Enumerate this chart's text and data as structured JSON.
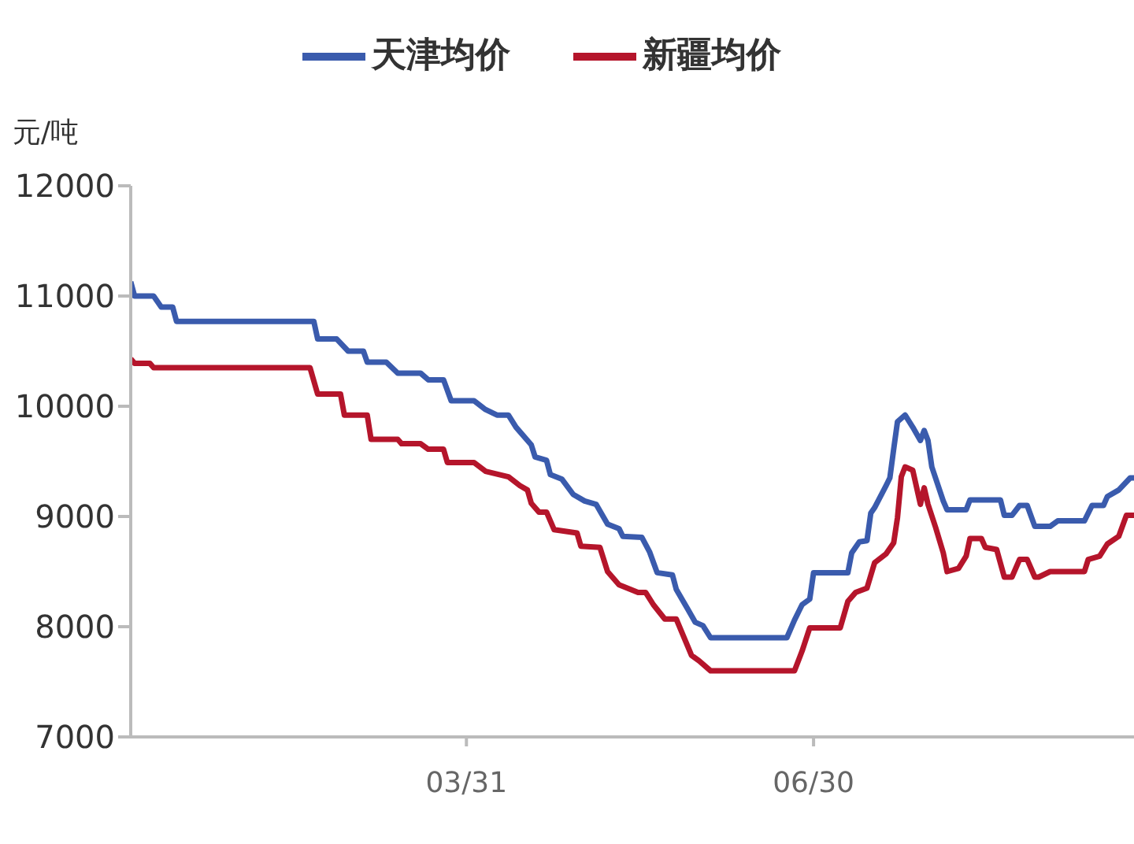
{
  "chart_data": {
    "type": "line",
    "ylabel": "元/吨",
    "legend": "top",
    "grid": false,
    "marker": "none",
    "line_style": "solid",
    "ylim": [
      7000,
      12000
    ],
    "yticks": [
      7000,
      8000,
      9000,
      10000,
      11000,
      12000
    ],
    "xlim": [
      "--01-02",
      "--09-22"
    ],
    "xticks": [
      {
        "value": "--03-31",
        "label": "03/31"
      },
      {
        "value": "--06-30",
        "label": "06/30"
      }
    ],
    "series": [
      {
        "name": "新疆均价",
        "color": "#b5152b",
        "x": [
          "--01-02",
          "--01-03",
          "--01-07",
          "--01-08",
          "--02-18",
          "--02-20",
          "--02-26",
          "--02-27",
          "--03-05",
          "--03-06",
          "--03-13",
          "--03-14",
          "--03-19",
          "--03-21",
          "--03-25",
          "--03-26",
          "--04-02",
          "--04-05",
          "--04-11",
          "--04-14",
          "--04-16",
          "--04-17",
          "--04-19",
          "--04-21",
          "--04-23",
          "--04-29",
          "--04-30",
          "--05-05",
          "--05-07",
          "--05-10",
          "--05-15",
          "--05-17",
          "--05-19",
          "--05-22",
          "--05-25",
          "--05-29",
          "--05-31",
          "--06-03",
          "--06-25",
          "--06-27",
          "--06-29",
          "--07-07",
          "--07-09",
          "--07-11",
          "--07-14",
          "--07-16",
          "--07-19",
          "--07-21",
          "--07-22",
          "--07-23",
          "--07-24",
          "--07-26",
          "--07-28",
          "--07-29",
          "--07-30",
          "--08-01",
          "--08-03",
          "--08-04",
          "--08-07",
          "--08-09",
          "--08-10",
          "--08-13",
          "--08-14",
          "--08-17",
          "--08-19",
          "--08-21",
          "--08-23",
          "--08-25",
          "--08-27",
          "--08-28",
          "--08-31",
          "--09-09",
          "--09-10",
          "--09-13",
          "--09-15",
          "--09-18",
          "--09-20",
          "--09-22"
        ],
        "values": [
          10430,
          10390,
          10390,
          10350,
          10350,
          10110,
          10110,
          9920,
          9920,
          9700,
          9700,
          9660,
          9660,
          9610,
          9610,
          9490,
          9490,
          9410,
          9360,
          9280,
          9240,
          9120,
          9040,
          9040,
          8880,
          8850,
          8730,
          8720,
          8500,
          8380,
          8310,
          8310,
          8200,
          8070,
          8070,
          7740,
          7690,
          7600,
          7600,
          7780,
          7990,
          7990,
          8230,
          8310,
          8350,
          8580,
          8660,
          8760,
          8990,
          9360,
          9450,
          9420,
          9110,
          9260,
          9110,
          8900,
          8670,
          8500,
          8530,
          8640,
          8800,
          8800,
          8720,
          8700,
          8450,
          8450,
          8610,
          8610,
          8450,
          8450,
          8500,
          8500,
          8610,
          8640,
          8750,
          8820,
          9010,
          9010
        ]
      },
      {
        "name": "天津均价",
        "color": "#3a5bad",
        "x": [
          "--01-02",
          "--01-03",
          "--01-08",
          "--01-10",
          "--01-13",
          "--01-14",
          "--02-19",
          "--02-20",
          "--02-25",
          "--02-28",
          "--03-04",
          "--03-05",
          "--03-10",
          "--03-13",
          "--03-19",
          "--03-21",
          "--03-25",
          "--03-27",
          "--04-02",
          "--04-05",
          "--04-08",
          "--04-11",
          "--04-13",
          "--04-17",
          "--04-18",
          "--04-21",
          "--04-22",
          "--04-25",
          "--04-28",
          "--05-01",
          "--05-04",
          "--05-07",
          "--05-10",
          "--05-11",
          "--05-16",
          "--05-18",
          "--05-20",
          "--05-24",
          "--05-25",
          "--05-28",
          "--05-30",
          "--06-01",
          "--06-03",
          "--06-23",
          "--06-25",
          "--06-27",
          "--06-29",
          "--06-30",
          "--07-09",
          "--07-10",
          "--07-12",
          "--07-14",
          "--07-15",
          "--07-16",
          "--07-19",
          "--07-20",
          "--07-21",
          "--07-22",
          "--07-24",
          "--07-26",
          "--07-28",
          "--07-29",
          "--07-30",
          "--07-31",
          "--08-03",
          "--08-04",
          "--08-09",
          "--08-10",
          "--08-18",
          "--08-19",
          "--08-21",
          "--08-23",
          "--08-25",
          "--08-27",
          "--08-31",
          "--09-02",
          "--09-09",
          "--09-11",
          "--09-14",
          "--09-15",
          "--09-18",
          "--09-21",
          "--09-22"
        ],
        "values": [
          11130,
          11000,
          11000,
          10900,
          10900,
          10770,
          10770,
          10610,
          10610,
          10500,
          10500,
          10400,
          10400,
          10300,
          10300,
          10240,
          10240,
          10050,
          10050,
          9970,
          9920,
          9920,
          9810,
          9650,
          9540,
          9510,
          9380,
          9340,
          9200,
          9140,
          9110,
          8930,
          8890,
          8820,
          8810,
          8680,
          8490,
          8470,
          8340,
          8160,
          8040,
          8010,
          7900,
          7900,
          8060,
          8200,
          8250,
          8490,
          8490,
          8670,
          8770,
          8780,
          9030,
          9080,
          9280,
          9350,
          9610,
          9860,
          9920,
          9810,
          9690,
          9780,
          9690,
          9450,
          9140,
          9060,
          9060,
          9150,
          9150,
          9010,
          9010,
          9100,
          9100,
          8910,
          8910,
          8960,
          8960,
          9100,
          9100,
          9180,
          9240,
          9350,
          9350
        ]
      }
    ]
  }
}
